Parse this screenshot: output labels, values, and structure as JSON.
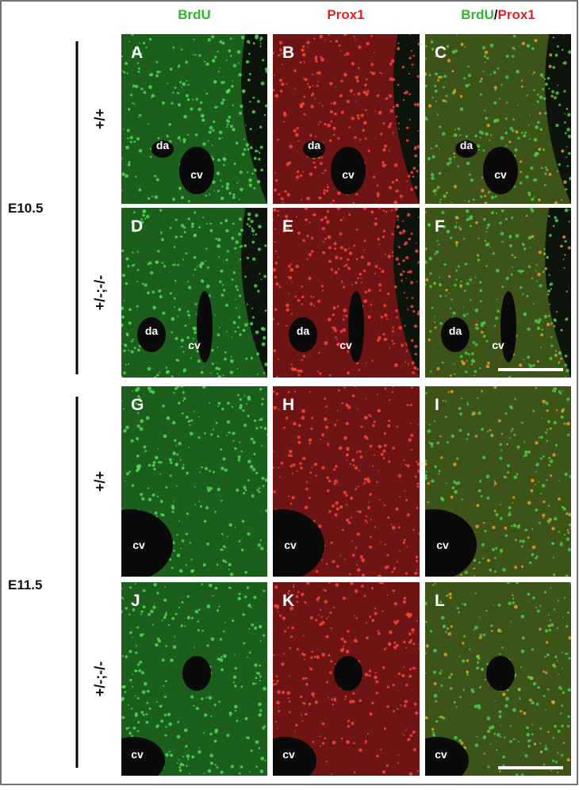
{
  "column_headers": [
    "BrdU",
    "Prox1"
  ],
  "merge_separator": "/",
  "groups": [
    {
      "stage": "E10.5",
      "rows": [
        {
          "genotype": "+/+",
          "panels": [
            {
              "letter": "A",
              "labels": [
                "da",
                "cv"
              ]
            },
            {
              "letter": "B",
              "labels": [
                "da",
                "cv"
              ]
            },
            {
              "letter": "C",
              "labels": [
                "da",
                "cv"
              ]
            }
          ]
        },
        {
          "genotype": "+/-;-/-",
          "panels": [
            {
              "letter": "D",
              "labels": [
                "da",
                "cv"
              ]
            },
            {
              "letter": "E",
              "labels": [
                "da",
                "cv"
              ]
            },
            {
              "letter": "F",
              "labels": [
                "da",
                "cv"
              ]
            }
          ]
        }
      ]
    },
    {
      "stage": "E11.5",
      "rows": [
        {
          "genotype": "+/+",
          "panels": [
            {
              "letter": "G",
              "labels": [
                "cv"
              ]
            },
            {
              "letter": "H",
              "labels": [
                "cv"
              ]
            },
            {
              "letter": "I",
              "labels": [
                "cv"
              ]
            }
          ]
        },
        {
          "genotype": "+/-;-/-",
          "panels": [
            {
              "letter": "J",
              "labels": [
                "cv"
              ]
            },
            {
              "letter": "K",
              "labels": [
                "cv"
              ]
            },
            {
              "letter": "L",
              "labels": [
                "cv"
              ]
            }
          ]
        }
      ]
    }
  ]
}
